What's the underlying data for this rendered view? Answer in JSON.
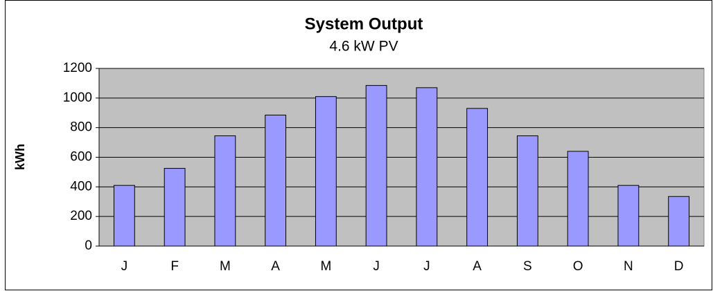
{
  "chart_data": {
    "type": "bar",
    "title": "System Output",
    "subtitle": "4.6 kW PV",
    "y_label": "kWh",
    "categories": [
      "J",
      "F",
      "M",
      "A",
      "M",
      "J",
      "J",
      "A",
      "S",
      "O",
      "N",
      "D"
    ],
    "values": [
      410,
      525,
      745,
      885,
      1010,
      1085,
      1070,
      930,
      745,
      640,
      410,
      335
    ],
    "color": "#9999ff",
    "ylim": [
      0,
      1200
    ],
    "yticks": [
      0,
      200,
      400,
      600,
      800,
      1000,
      1200
    ],
    "grid": true
  }
}
